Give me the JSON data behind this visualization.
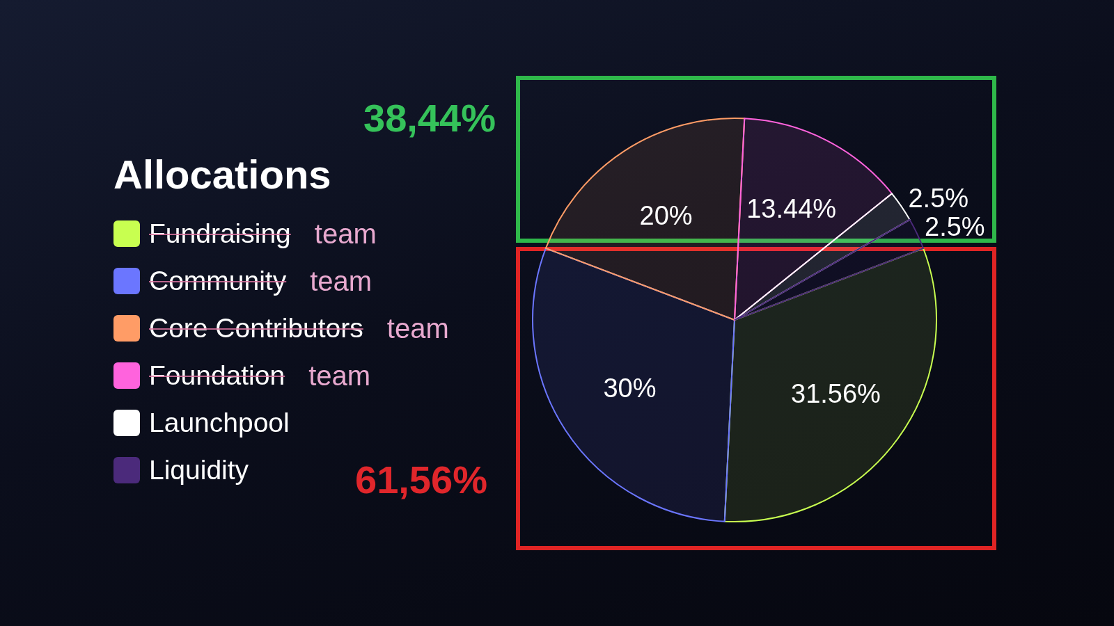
{
  "chart_data": {
    "type": "pie",
    "legend_title": "Allocations",
    "categories": [
      "Fundraising",
      "Community",
      "Core Contributors",
      "Foundation",
      "Launchpool",
      "Liquidity"
    ],
    "values": [
      31.56,
      30,
      20,
      13.44,
      2.5,
      2.5
    ],
    "colors": [
      "#c8ff50",
      "#6b76ff",
      "#ff9c66",
      "#ff63dd",
      "#ffffff",
      "#4b2a7b"
    ],
    "value_labels": [
      "31.56%",
      "30%",
      "20%",
      "13.44%",
      "2.5%",
      "2.5%"
    ],
    "legend": "left",
    "annotations": [
      "38,44%",
      "61,56%",
      "team",
      "team",
      "team",
      "team"
    ]
  }
}
